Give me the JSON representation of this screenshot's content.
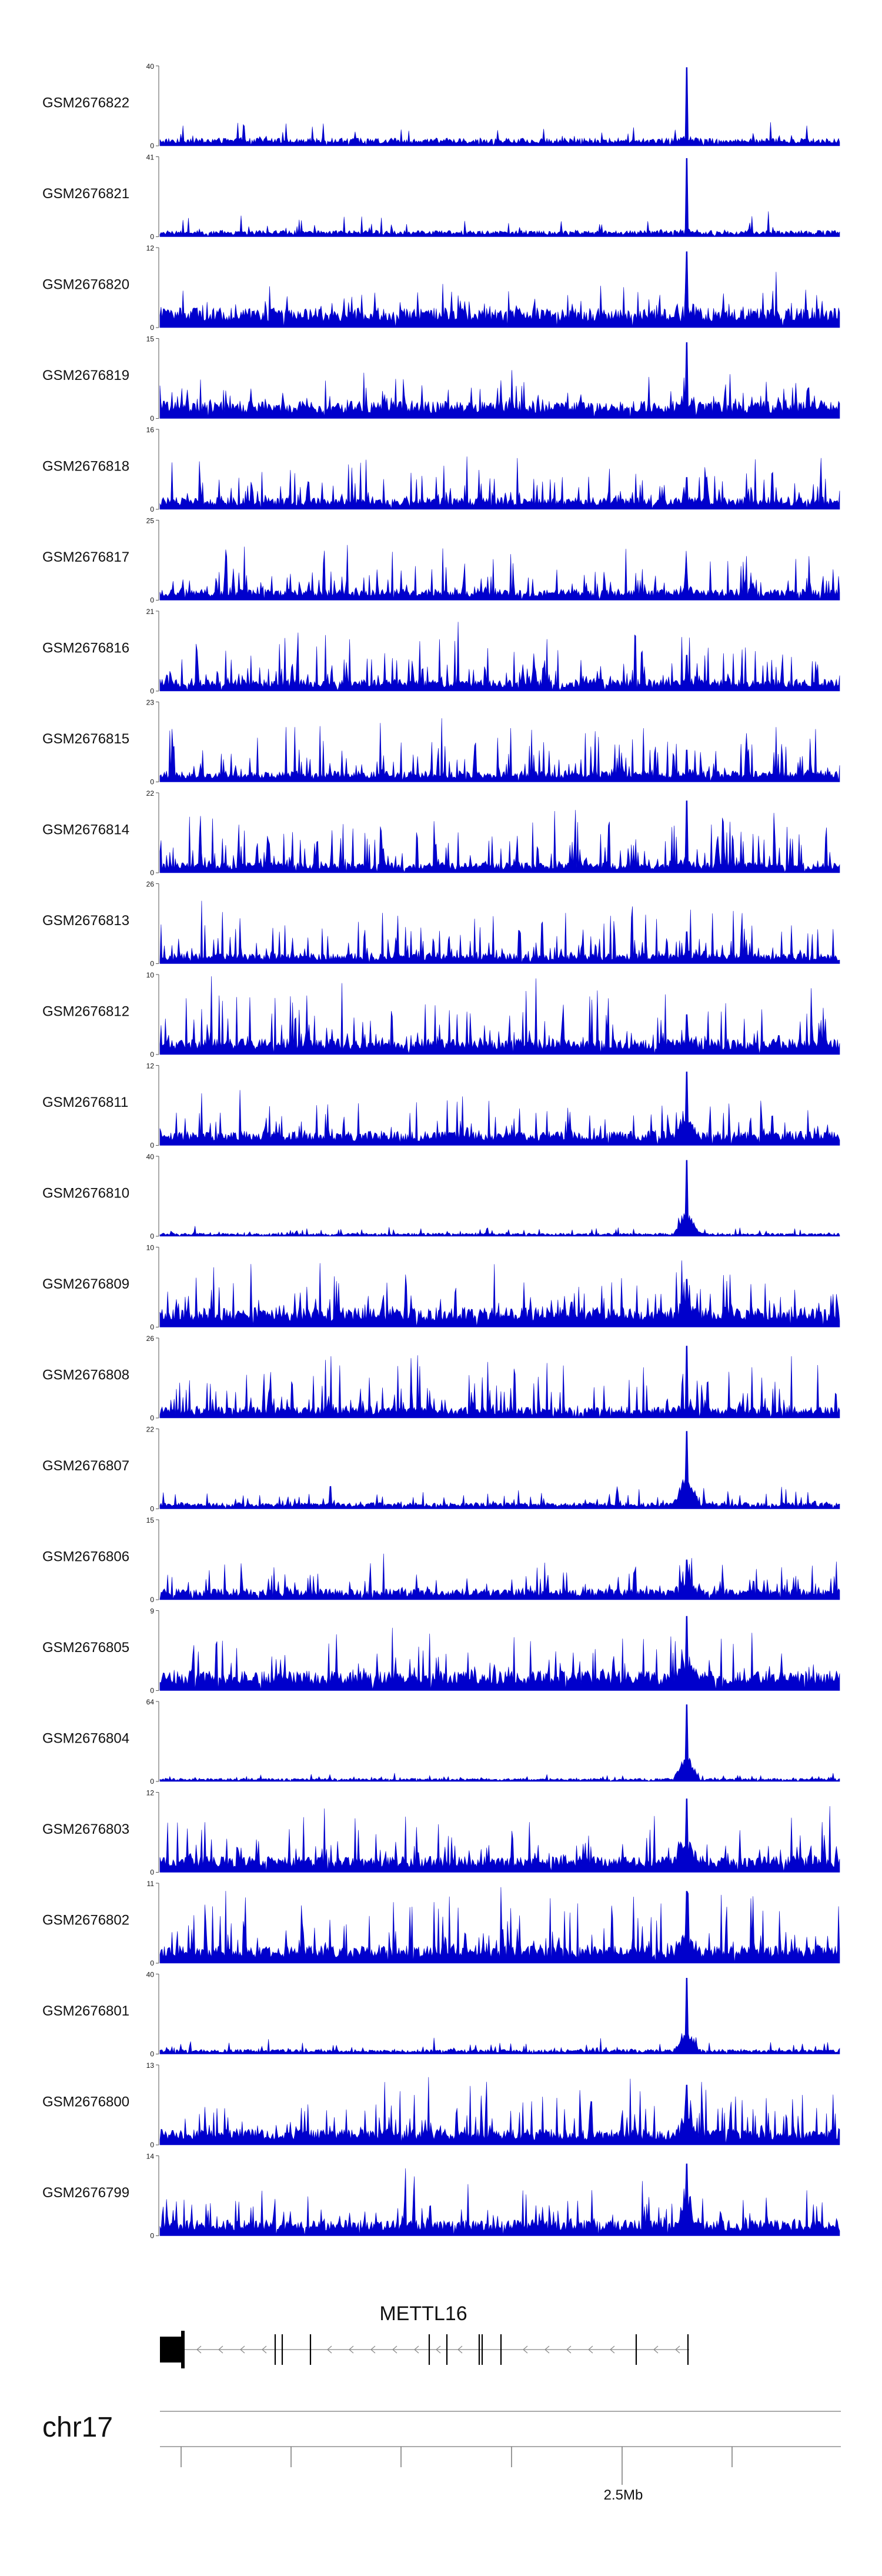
{
  "colors": {
    "signal": "#0000cc",
    "axis": "#555555",
    "text": "#111111",
    "gene": "#000000"
  },
  "chart_data": {
    "type": "area",
    "tracks": [
      {
        "name": "GSM2676822",
        "ymax": "40",
        "ymin": "0",
        "baseline": 0.1,
        "noise": 0.22,
        "spikiness": 0.3,
        "peak": 0.98,
        "hump": 0.05
      },
      {
        "name": "GSM2676821",
        "ymax": "41",
        "ymin": "0",
        "baseline": 0.08,
        "noise": 0.22,
        "spikiness": 0.3,
        "peak": 0.98,
        "hump": 0.05
      },
      {
        "name": "GSM2676820",
        "ymax": "12",
        "ymin": "0",
        "baseline": 0.25,
        "noise": 0.35,
        "spikiness": 0.4,
        "peak": 0.95,
        "hump": 0.12
      },
      {
        "name": "GSM2676819",
        "ymax": "15",
        "ymin": "0",
        "baseline": 0.22,
        "noise": 0.32,
        "spikiness": 0.45,
        "peak": 0.95,
        "hump": 0.1
      },
      {
        "name": "GSM2676818",
        "ymax": "16",
        "ymin": "0",
        "baseline": 0.15,
        "noise": 0.45,
        "spikiness": 0.75,
        "peak": 0.4,
        "hump": 0.05
      },
      {
        "name": "GSM2676817",
        "ymax": "25",
        "ymin": "0",
        "baseline": 0.14,
        "noise": 0.45,
        "spikiness": 0.75,
        "peak": 0.35,
        "hump": 0.05
      },
      {
        "name": "GSM2676816",
        "ymax": "21",
        "ymin": "0",
        "baseline": 0.15,
        "noise": 0.5,
        "spikiness": 0.8,
        "peak": 0.45,
        "hump": 0.05
      },
      {
        "name": "GSM2676815",
        "ymax": "23",
        "ymin": "0",
        "baseline": 0.14,
        "noise": 0.55,
        "spikiness": 0.85,
        "peak": 0.4,
        "hump": 0.05
      },
      {
        "name": "GSM2676814",
        "ymax": "22",
        "ymin": "0",
        "baseline": 0.13,
        "noise": 0.5,
        "spikiness": 0.8,
        "peak": 0.9,
        "hump": 0.05
      },
      {
        "name": "GSM2676813",
        "ymax": "26",
        "ymin": "0",
        "baseline": 0.13,
        "noise": 0.5,
        "spikiness": 0.8,
        "peak": 0.4,
        "hump": 0.05
      },
      {
        "name": "GSM2676812",
        "ymax": "10",
        "ymin": "0",
        "baseline": 0.2,
        "noise": 0.6,
        "spikiness": 0.75,
        "peak": 0.5,
        "hump": 0.08
      },
      {
        "name": "GSM2676811",
        "ymax": "12",
        "ymin": "0",
        "baseline": 0.18,
        "noise": 0.42,
        "spikiness": 0.55,
        "peak": 0.92,
        "hump": 0.25
      },
      {
        "name": "GSM2676810",
        "ymax": "40",
        "ymin": "0",
        "baseline": 0.04,
        "noise": 0.08,
        "spikiness": 0.3,
        "peak": 0.95,
        "hump": 0.35
      },
      {
        "name": "GSM2676809",
        "ymax": "10",
        "ymin": "0",
        "baseline": 0.25,
        "noise": 0.5,
        "spikiness": 0.55,
        "peak": 0.6,
        "hump": 0.15
      },
      {
        "name": "GSM2676808",
        "ymax": "26",
        "ymin": "0",
        "baseline": 0.14,
        "noise": 0.55,
        "spikiness": 0.8,
        "peak": 0.9,
        "hump": 0.05
      },
      {
        "name": "GSM2676807",
        "ymax": "22",
        "ymin": "0",
        "baseline": 0.08,
        "noise": 0.18,
        "spikiness": 0.4,
        "peak": 0.97,
        "hump": 0.4
      },
      {
        "name": "GSM2676806",
        "ymax": "15",
        "ymin": "0",
        "baseline": 0.14,
        "noise": 0.35,
        "spikiness": 0.6,
        "peak": 0.5,
        "hump": 0.2
      },
      {
        "name": "GSM2676805",
        "ymax": "9",
        "ymin": "0",
        "baseline": 0.25,
        "noise": 0.45,
        "spikiness": 0.5,
        "peak": 0.93,
        "hump": 0.25
      },
      {
        "name": "GSM2676804",
        "ymax": "64",
        "ymin": "0",
        "baseline": 0.04,
        "noise": 0.06,
        "spikiness": 0.25,
        "peak": 0.96,
        "hump": 0.35
      },
      {
        "name": "GSM2676803",
        "ymax": "12",
        "ymin": "0",
        "baseline": 0.2,
        "noise": 0.45,
        "spikiness": 0.55,
        "peak": 0.92,
        "hump": 0.3
      },
      {
        "name": "GSM2676802",
        "ymax": "11",
        "ymin": "0",
        "baseline": 0.22,
        "noise": 0.55,
        "spikiness": 0.6,
        "peak": 0.9,
        "hump": 0.25
      },
      {
        "name": "GSM2676801",
        "ymax": "40",
        "ymin": "0",
        "baseline": 0.06,
        "noise": 0.12,
        "spikiness": 0.35,
        "peak": 0.95,
        "hump": 0.25
      },
      {
        "name": "GSM2676800",
        "ymax": "13",
        "ymin": "0",
        "baseline": 0.2,
        "noise": 0.55,
        "spikiness": 0.6,
        "peak": 0.75,
        "hump": 0.25
      },
      {
        "name": "GSM2676799",
        "ymax": "14",
        "ymin": "0",
        "baseline": 0.2,
        "noise": 0.45,
        "spikiness": 0.55,
        "peak": 0.9,
        "hump": 0.3
      }
    ],
    "gene": {
      "name": "METTL16",
      "strand": "-"
    },
    "chromosome": "chr17",
    "axis_tick_labels": [
      "2.5Mb"
    ]
  }
}
